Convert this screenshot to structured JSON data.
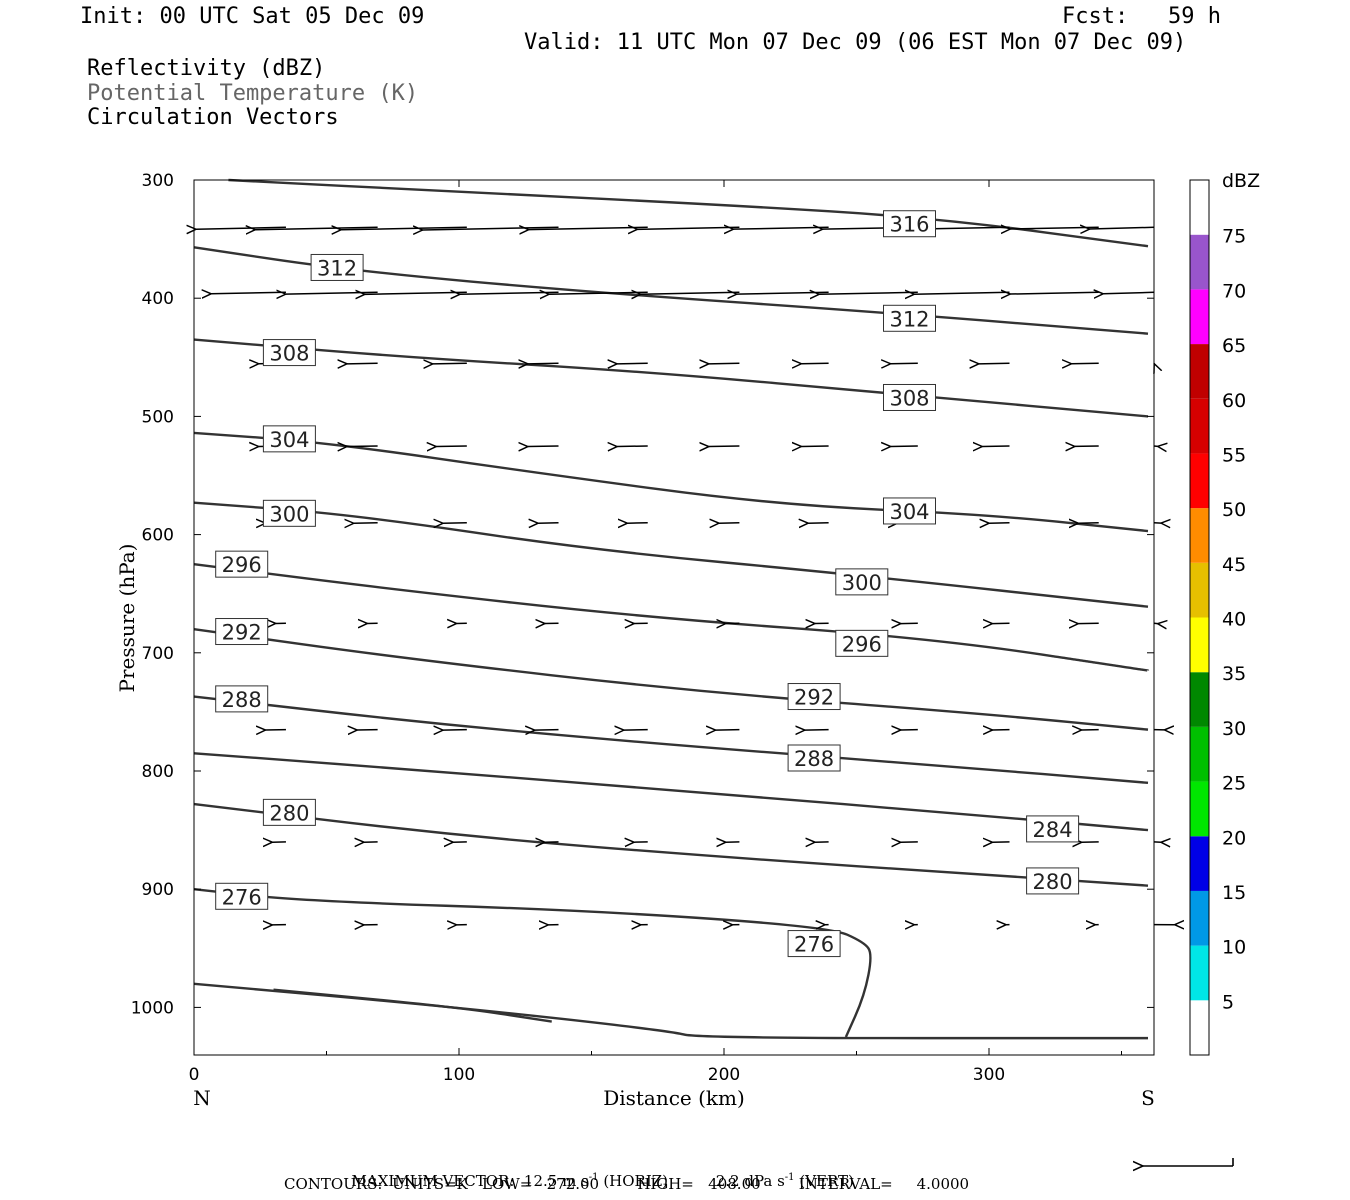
{
  "header": {
    "init": "Init: 00 UTC Sat 05 Dec 09",
    "fcst": "Fcst:   59 h",
    "valid": "Valid: 11 UTC Mon 07 Dec 09 (06 EST Mon 07 Dec 09)",
    "fields": [
      "Reflectivity (dBZ)",
      "Potential Temperature (K)",
      "Circulation Vectors"
    ]
  },
  "colors": {
    "contour": "#333333",
    "frame": "#000000",
    "field_gray": "#666666"
  },
  "chart_data": {
    "type": "cross-section",
    "xlabel": "Distance (km)",
    "ylabel": "Pressure (hPa)",
    "xlim": [
      0,
      360
    ],
    "ylim": [
      300,
      1040
    ],
    "x_ticks": [
      0,
      100,
      200,
      300
    ],
    "y_ticks": [
      300,
      400,
      500,
      600,
      700,
      800,
      900,
      1000
    ],
    "end_labels": {
      "left": "N",
      "right": "S"
    },
    "colorbar": {
      "title": "dBZ",
      "levels": [
        5,
        10,
        15,
        20,
        25,
        30,
        35,
        40,
        45,
        50,
        55,
        60,
        65,
        70,
        75
      ],
      "colors": [
        "#ffffff",
        "#00e6e6",
        "#0099e6",
        "#0000e6",
        "#00e600",
        "#00c000",
        "#008800",
        "#ffff00",
        "#e6c000",
        "#ff8c00",
        "#ff0000",
        "#d60000",
        "#c00000",
        "#ff00ff",
        "#9955cc",
        "#ffffff"
      ]
    },
    "theta_contours": [
      {
        "value": 316,
        "points": [
          [
            13,
            300
          ],
          [
            100,
            310
          ],
          [
            200,
            321
          ],
          [
            280,
            332
          ],
          [
            360,
            356
          ]
        ],
        "labels": [
          [
            270,
            337
          ]
        ]
      },
      {
        "value": 312,
        "points": [
          [
            0,
            357
          ],
          [
            60,
            377
          ],
          [
            150,
            395
          ],
          [
            260,
            412
          ],
          [
            360,
            430
          ]
        ],
        "labels": [
          [
            54,
            374
          ],
          [
            270,
            417
          ]
        ]
      },
      {
        "value": 308,
        "points": [
          [
            0,
            435
          ],
          [
            80,
            450
          ],
          [
            170,
            462
          ],
          [
            270,
            482
          ],
          [
            360,
            500
          ]
        ],
        "labels": [
          [
            36,
            446
          ],
          [
            270,
            484
          ]
        ]
      },
      {
        "value": 304,
        "points": [
          [
            0,
            514
          ],
          [
            50,
            522
          ],
          [
            130,
            548
          ],
          [
            220,
            575
          ],
          [
            300,
            583
          ],
          [
            360,
            597
          ]
        ],
        "labels": [
          [
            36,
            519
          ],
          [
            270,
            580
          ]
        ]
      },
      {
        "value": 300,
        "points": [
          [
            0,
            573
          ],
          [
            60,
            583
          ],
          [
            150,
            613
          ],
          [
            250,
            634
          ],
          [
            360,
            661
          ]
        ],
        "labels": [
          [
            36,
            582
          ],
          [
            252,
            640
          ]
        ]
      },
      {
        "value": 296,
        "points": [
          [
            0,
            625
          ],
          [
            70,
            645
          ],
          [
            170,
            670
          ],
          [
            280,
            688
          ],
          [
            360,
            715
          ]
        ],
        "labels": [
          [
            18,
            625
          ],
          [
            252,
            692
          ]
        ]
      },
      {
        "value": 292,
        "points": [
          [
            0,
            680
          ],
          [
            80,
            705
          ],
          [
            190,
            733
          ],
          [
            300,
            752
          ],
          [
            360,
            765
          ]
        ],
        "labels": [
          [
            18,
            682
          ],
          [
            234,
            737
          ]
        ]
      },
      {
        "value": 288,
        "points": [
          [
            0,
            737
          ],
          [
            90,
            760
          ],
          [
            180,
            778
          ],
          [
            280,
            795
          ],
          [
            360,
            810
          ]
        ],
        "labels": [
          [
            18,
            739
          ],
          [
            234,
            789
          ]
        ]
      },
      {
        "value": 284,
        "points": [
          [
            0,
            785
          ],
          [
            90,
            800
          ],
          [
            190,
            818
          ],
          [
            300,
            838
          ],
          [
            360,
            850
          ]
        ],
        "labels": [
          [
            324,
            849
          ]
        ]
      },
      {
        "value": 280,
        "points": [
          [
            0,
            828
          ],
          [
            100,
            855
          ],
          [
            200,
            873
          ],
          [
            300,
            888
          ],
          [
            360,
            897
          ]
        ],
        "labels": [
          [
            36,
            835
          ],
          [
            324,
            893
          ]
        ]
      },
      {
        "value": 276,
        "points": [
          [
            0,
            900
          ],
          [
            40,
            910
          ],
          [
            150,
            918
          ],
          [
            240,
            932
          ],
          [
            253,
            945
          ],
          [
            256,
            955
          ],
          [
            253,
            990
          ],
          [
            246,
            1025
          ]
        ],
        "labels": [
          [
            18,
            906
          ],
          [
            234,
            946
          ]
        ]
      },
      {
        "value": 272,
        "points": [
          [
            30,
            985
          ],
          [
            100,
            1000
          ],
          [
            135,
            1012
          ]
        ],
        "labels": []
      },
      {
        "value": 272,
        "points": [
          [
            0,
            980
          ],
          [
            100,
            1000
          ],
          [
            180,
            1020
          ],
          [
            190,
            1026
          ],
          [
            360,
            1026
          ]
        ],
        "labels": []
      }
    ],
    "max_vector": {
      "horiz": 12.5,
      "horiz_units": "m s-1",
      "vert": 2.2,
      "vert_units": "dPa s-1"
    },
    "vectors": [
      {
        "p": 340,
        "u": [
          -29,
          -36,
          -37,
          -40,
          -35,
          -30,
          -28,
          -28,
          -28,
          -26,
          -26
        ]
      },
      {
        "p": 395,
        "u": [
          -22,
          -27,
          -30,
          -29,
          -29,
          -29,
          -27,
          -29,
          -28,
          -26,
          -22
        ]
      },
      {
        "p": 455,
        "u": [
          -8,
          -9,
          -10,
          -9,
          -9,
          -9,
          -8,
          -8,
          -9,
          -8,
          -7
        ]
      },
      {
        "p": 525,
        "u": [
          -8,
          -9,
          -9,
          -9,
          -9,
          -9,
          -8,
          -8,
          -8,
          -7,
          -6
        ]
      },
      {
        "p": 590,
        "u": [
          -6,
          -7,
          -7,
          -6,
          -6,
          -6,
          -6,
          -6,
          -6,
          -6,
          -5
        ]
      },
      {
        "p": 675,
        "u": [
          -3,
          -3,
          -3,
          -4,
          -4,
          -4,
          -4,
          -5,
          -5,
          -6,
          -6
        ]
      },
      {
        "p": 765,
        "u": [
          -6,
          -6,
          -7,
          -7,
          -7,
          -7,
          -7,
          -5,
          -5,
          -5,
          -4
        ]
      },
      {
        "p": 860,
        "u": [
          -4,
          -4,
          -4,
          -4,
          -4,
          -4,
          -4,
          -5,
          -5,
          -5,
          -5
        ]
      },
      {
        "p": 930,
        "u": [
          -4,
          -4,
          -3,
          -3,
          -2,
          -2,
          -1,
          -1,
          -1,
          -1,
          -1
        ]
      }
    ]
  },
  "footer": {
    "line1": "MAXIMUM VECTOR:  12.5 m s",
    "line1_unit_a": "(HORIZ)",
    "line1_vert": "2.2 dPa s",
    "line1_unit_b": "(VERT)",
    "exp": "-1",
    "line2": "CONTOURS:  UNITS=K   LOW=   272.00        HIGH=   408.00        INTERVAL=     4.0000"
  }
}
